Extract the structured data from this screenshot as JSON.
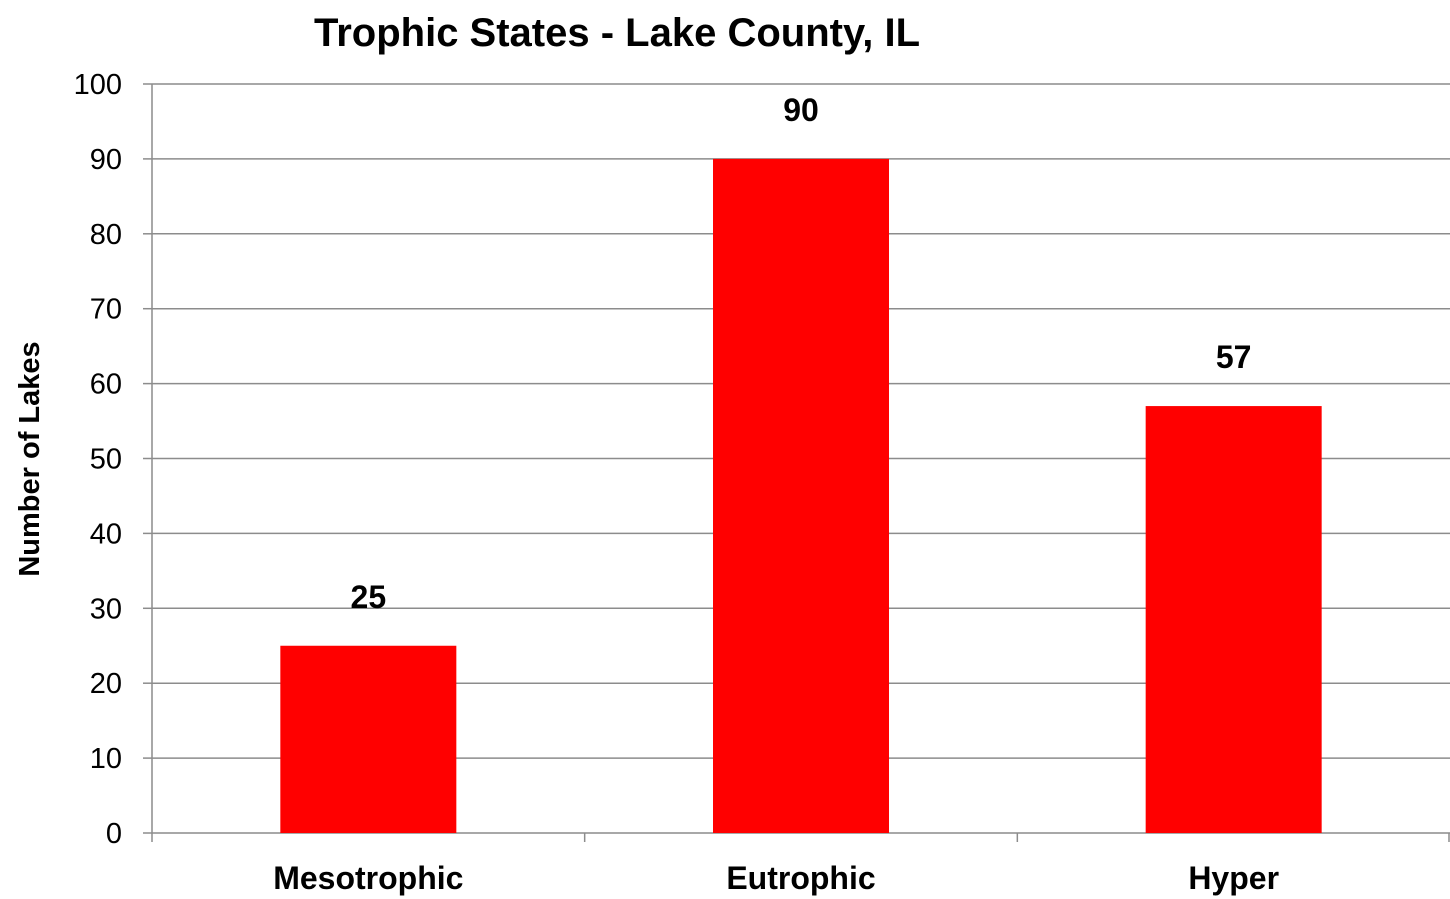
{
  "chart_data": {
    "type": "bar",
    "title": "Trophic States - Lake County, IL",
    "xlabel": "",
    "ylabel": "Number of Lakes",
    "categories": [
      "Mesotrophic",
      "Eutrophic",
      "Hyper"
    ],
    "values": [
      25,
      90,
      57
    ],
    "data_labels": [
      "25",
      "90",
      "57"
    ],
    "ylim": [
      0,
      100
    ],
    "yticks": [
      0,
      10,
      20,
      30,
      40,
      50,
      60,
      70,
      80,
      90,
      100
    ],
    "grid": true,
    "legend": "none",
    "bar_color": "#ff0000",
    "grid_color": "#8c8c8c"
  }
}
